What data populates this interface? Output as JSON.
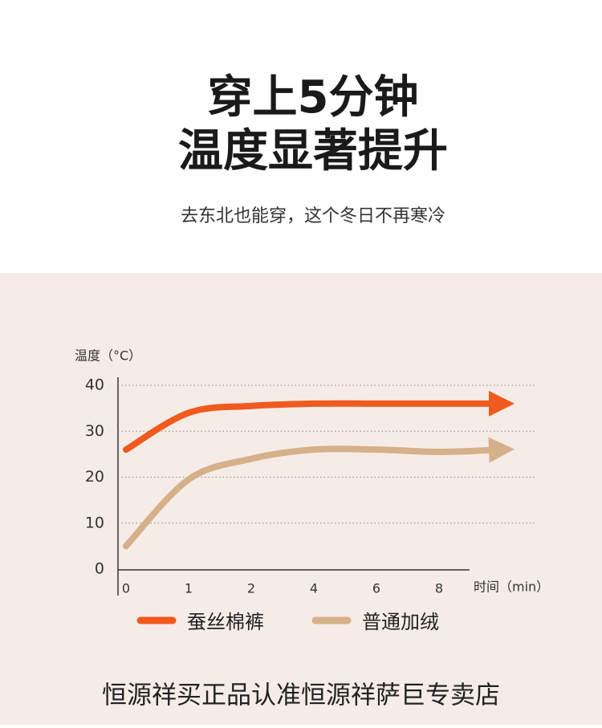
{
  "header": {
    "title_line1": "穿上5分钟",
    "title_line2": "温度显著提升",
    "subtitle": "去东北也能穿，这个冬日不再寒冷"
  },
  "chart_data": {
    "type": "line",
    "y_label": "温度（°C）",
    "x_label": "时间（min）",
    "categories": [
      "0",
      "1",
      "2",
      "4",
      "6",
      "8",
      null
    ],
    "series": [
      {
        "name": "蚕丝棉裤",
        "color": "#f05a1e",
        "values": [
          26,
          34,
          35.5,
          36,
          36,
          36,
          36
        ]
      },
      {
        "name": "普通加绒",
        "color": "#d6b089",
        "values": [
          5,
          19.5,
          24,
          26,
          26,
          25.5,
          26
        ]
      }
    ],
    "ylim": [
      0,
      40
    ],
    "yticks": [
      0,
      10,
      20,
      30,
      40
    ],
    "grid": true
  },
  "footer": {
    "text": "恒源祥买正品认准恒源祥萨巨专卖店"
  }
}
